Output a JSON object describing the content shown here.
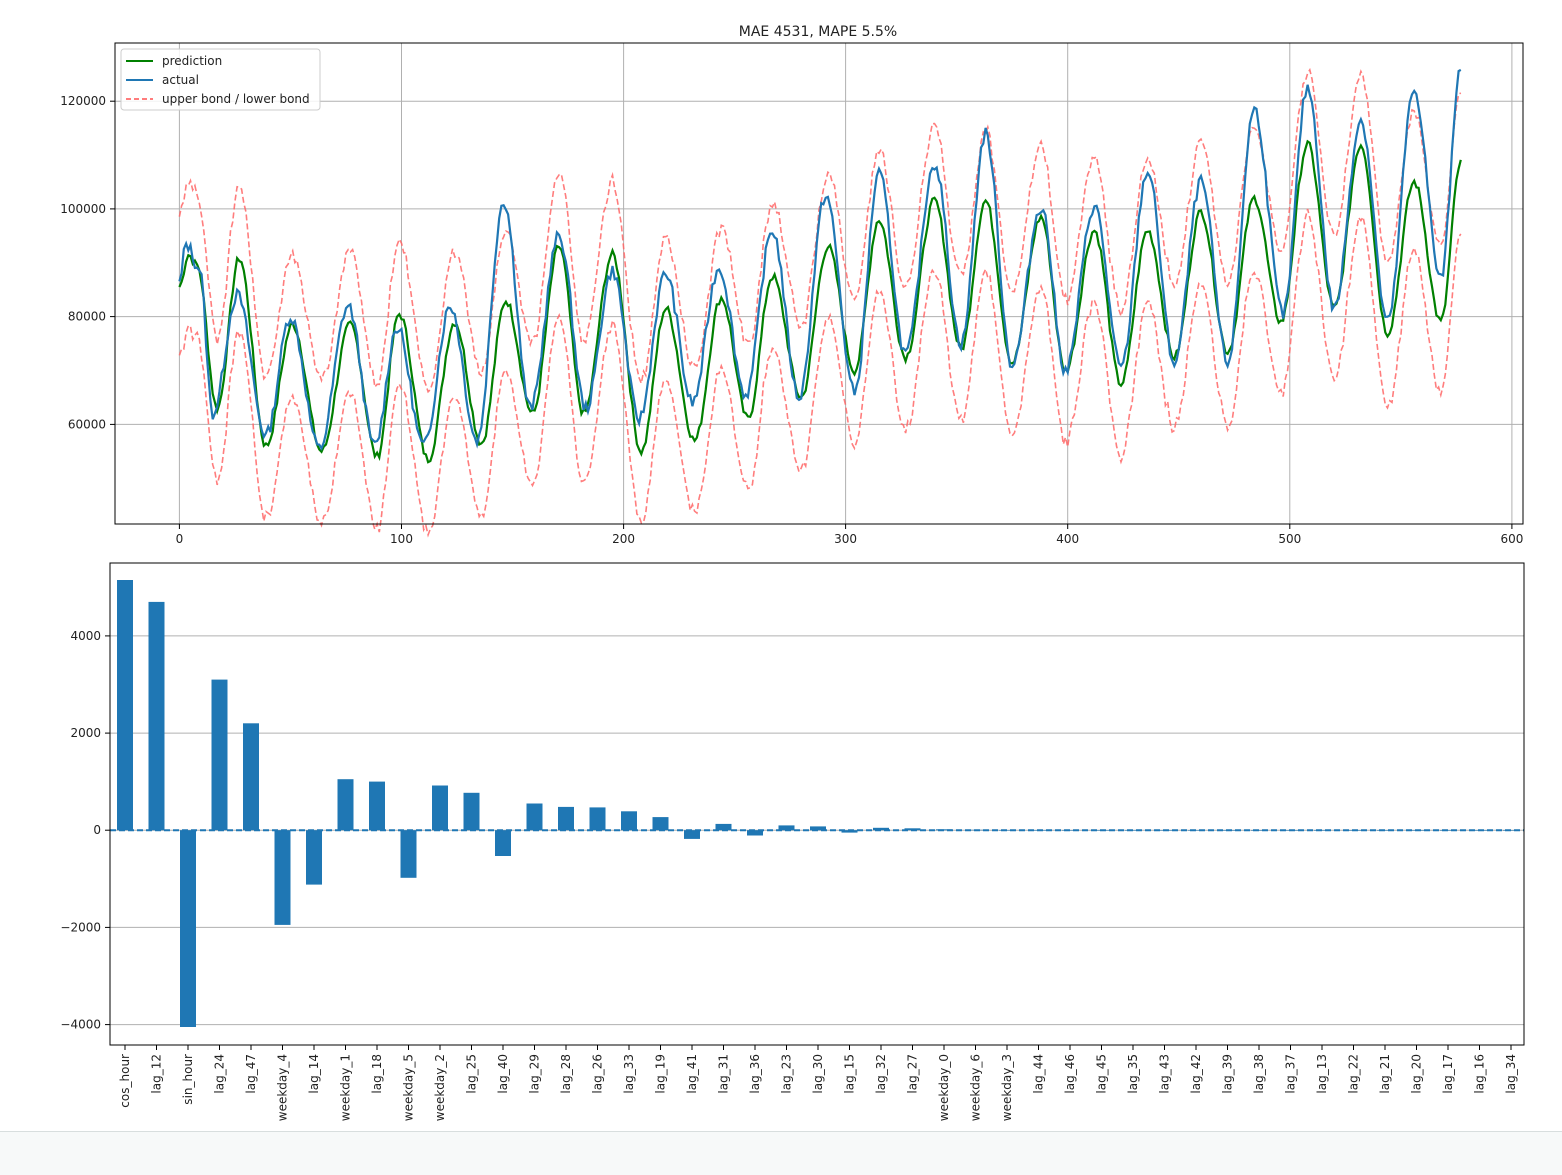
{
  "chart_data": [
    {
      "type": "line",
      "title": "MAE 4531, MAPE 5.5%",
      "xlabel": "",
      "ylabel": "",
      "xlim": [
        -29,
        605
      ],
      "ylim": [
        41500,
        130800
      ],
      "xticks": [
        0,
        100,
        200,
        300,
        400,
        500,
        600
      ],
      "yticks": [
        60000,
        80000,
        100000,
        120000
      ],
      "grid": true,
      "legend_position": "upper-left",
      "n_points": 578,
      "band_width": 13300,
      "series": [
        {
          "name": "prediction",
          "color": "#008000",
          "style": "solid",
          "keypoints": [
            [
              0,
              85500
            ],
            [
              4,
              91500
            ],
            [
              8,
              89500
            ],
            [
              17,
              63000
            ],
            [
              27,
              90800
            ],
            [
              39,
              56000
            ],
            [
              51,
              78500
            ],
            [
              64,
              55000
            ],
            [
              77,
              78500
            ],
            [
              89,
              54000
            ],
            [
              99,
              80500
            ],
            [
              112,
              53500
            ],
            [
              124,
              79000
            ],
            [
              136,
              56500
            ],
            [
              147,
              83000
            ],
            [
              159,
              62000
            ],
            [
              171,
              93000
            ],
            [
              182,
              62000
            ],
            [
              195,
              91500
            ],
            [
              208,
              55000
            ],
            [
              219,
              81500
            ],
            [
              232,
              57000
            ],
            [
              244,
              83500
            ],
            [
              256,
              61000
            ],
            [
              267,
              87500
            ],
            [
              280,
              65000
            ],
            [
              292,
              93000
            ],
            [
              304,
              70000
            ],
            [
              315,
              98000
            ],
            [
              327,
              72500
            ],
            [
              340,
              101500
            ],
            [
              352,
              74000
            ],
            [
              363,
              101500
            ],
            [
              375,
              71500
            ],
            [
              388,
              98500
            ],
            [
              399,
              70000
            ],
            [
              412,
              96000
            ],
            [
              424,
              67500
            ],
            [
              436,
              96000
            ],
            [
              448,
              72500
            ],
            [
              460,
              99500
            ],
            [
              472,
              73500
            ],
            [
              484,
              102000
            ],
            [
              496,
              79000
            ],
            [
              508,
              112000
            ],
            [
              520,
              81500
            ],
            [
              532,
              112000
            ],
            [
              544,
              77000
            ],
            [
              556,
              105000
            ],
            [
              568,
              79000
            ],
            [
              577,
              108500
            ]
          ]
        },
        {
          "name": "actual",
          "color": "#1f77b4",
          "style": "solid",
          "keypoints": [
            [
              0,
              86000
            ],
            [
              3,
              93500
            ],
            [
              9,
              89000
            ],
            [
              15,
              62000
            ],
            [
              26,
              84000
            ],
            [
              39,
              58000
            ],
            [
              50,
              80000
            ],
            [
              63,
              55500
            ],
            [
              76,
              82000
            ],
            [
              88,
              56000
            ],
            [
              98,
              78000
            ],
            [
              110,
              56000
            ],
            [
              122,
              82000
            ],
            [
              134,
              57000
            ],
            [
              146,
              101500
            ],
            [
              158,
              63000
            ],
            [
              171,
              95000
            ],
            [
              183,
              63000
            ],
            [
              195,
              88500
            ],
            [
              207,
              61000
            ],
            [
              219,
              88000
            ],
            [
              231,
              64000
            ],
            [
              243,
              89000
            ],
            [
              255,
              65500
            ],
            [
              267,
              96000
            ],
            [
              279,
              65000
            ],
            [
              291,
              102500
            ],
            [
              304,
              66000
            ],
            [
              315,
              106500
            ],
            [
              327,
              73000
            ],
            [
              340,
              108500
            ],
            [
              352,
              75000
            ],
            [
              363,
              114000
            ],
            [
              375,
              71000
            ],
            [
              388,
              100500
            ],
            [
              399,
              70000
            ],
            [
              412,
              100500
            ],
            [
              424,
              70500
            ],
            [
              436,
              107000
            ],
            [
              448,
              71500
            ],
            [
              460,
              105000
            ],
            [
              472,
              71500
            ],
            [
              484,
              118500
            ],
            [
              497,
              80500
            ],
            [
              508,
              122500
            ],
            [
              520,
              81500
            ],
            [
              532,
              116500
            ],
            [
              544,
              79000
            ],
            [
              556,
              122000
            ],
            [
              568,
              87000
            ],
            [
              577,
              127000
            ]
          ]
        },
        {
          "name": "upper bond / lower bond",
          "color": "#ff6666",
          "style": "dashed",
          "derived_from": "prediction"
        }
      ]
    },
    {
      "type": "bar",
      "title": "",
      "xlabel": "",
      "ylabel": "",
      "ylim": [
        -4420,
        5500
      ],
      "yticks": [
        -4000,
        -2000,
        0,
        2000,
        4000
      ],
      "grid": true,
      "color": "#1f77b4",
      "categories": [
        "cos_hour",
        "lag_12",
        "sin_hour",
        "lag_24",
        "lag_47",
        "weekday_4",
        "lag_14",
        "weekday_1",
        "lag_18",
        "weekday_5",
        "weekday_2",
        "lag_25",
        "lag_40",
        "lag_29",
        "lag_28",
        "lag_26",
        "lag_33",
        "lag_19",
        "lag_41",
        "lag_31",
        "lag_36",
        "lag_23",
        "lag_30",
        "lag_15",
        "lag_32",
        "lag_27",
        "weekday_0",
        "weekday_6",
        "weekday_3",
        "lag_44",
        "lag_46",
        "lag_45",
        "lag_35",
        "lag_43",
        "lag_42",
        "lag_39",
        "lag_38",
        "lag_37",
        "lag_13",
        "lag_22",
        "lag_21",
        "lag_20",
        "lag_17",
        "lag_16",
        "lag_34"
      ],
      "values": [
        5150,
        4700,
        -4050,
        3100,
        2200,
        -1950,
        -1120,
        1050,
        1000,
        -980,
        920,
        770,
        -530,
        550,
        480,
        470,
        390,
        270,
        -180,
        130,
        -110,
        100,
        80,
        -50,
        50,
        40,
        20,
        10,
        5,
        3,
        3,
        2,
        2,
        2,
        2,
        1,
        1,
        1,
        1,
        1,
        1,
        1,
        1,
        1,
        1
      ]
    }
  ]
}
